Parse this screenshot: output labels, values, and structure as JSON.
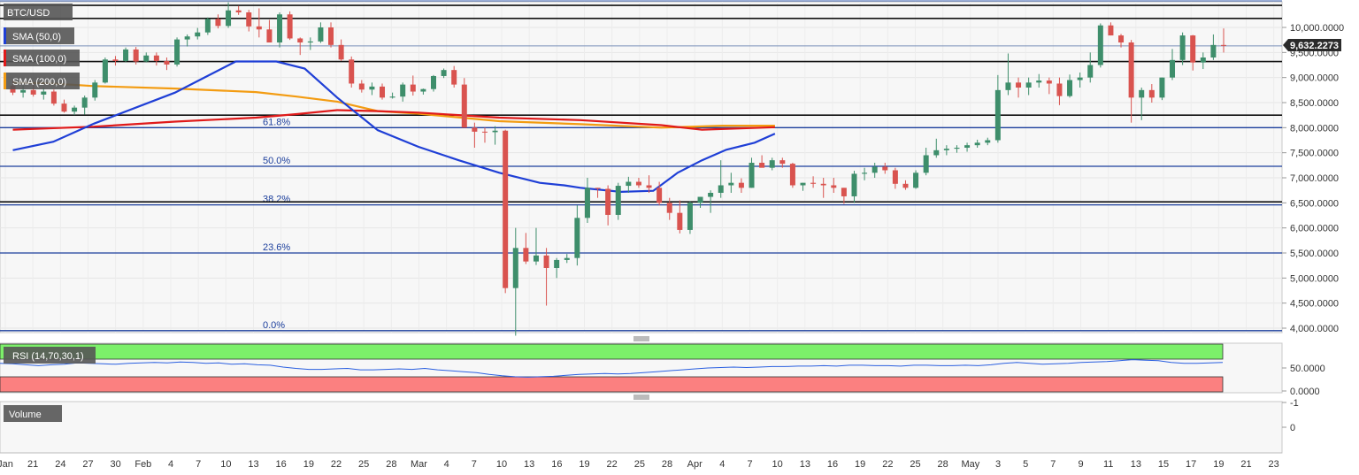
{
  "chart_data": {
    "type": "candlestick",
    "symbol": "BTC/USD",
    "indicator_labels": [
      "SMA (50,0)",
      "SMA (100,0)",
      "SMA (200,0)"
    ],
    "price_axis": {
      "min": 3900,
      "max": 10400,
      "ticks": [
        {
          "v": 10000,
          "label": "10,000.0000"
        },
        {
          "v": 9500,
          "label": "9,500.0000"
        },
        {
          "v": 9000,
          "label": "9,000.0000"
        },
        {
          "v": 8500,
          "label": "8,500.0000"
        },
        {
          "v": 8000,
          "label": "8,000.0000"
        },
        {
          "v": 7500,
          "label": "7,500.0000"
        },
        {
          "v": 7000,
          "label": "7,000.0000"
        },
        {
          "v": 6500,
          "label": "6,500.0000"
        },
        {
          "v": 6000,
          "label": "6,000.0000"
        },
        {
          "v": 5500,
          "label": "5,500.0000"
        },
        {
          "v": 5000,
          "label": "5,000.0000"
        },
        {
          "v": 4500,
          "label": "4,500.0000"
        },
        {
          "v": 4000,
          "label": "4,000.0000"
        }
      ]
    },
    "last_price": {
      "value": 9632.2273,
      "label": "9,632.2273"
    },
    "x_ticks": [
      "Jan",
      "21",
      "24",
      "27",
      "30",
      "Feb",
      "4",
      "7",
      "10",
      "13",
      "16",
      "19",
      "22",
      "25",
      "28",
      "Mar",
      "4",
      "7",
      "10",
      "13",
      "16",
      "19",
      "22",
      "25",
      "28",
      "Apr",
      "4",
      "7",
      "10",
      "13",
      "16",
      "19",
      "22",
      "25",
      "28",
      "May",
      "3",
      "5",
      "7",
      "9",
      "11",
      "13",
      "15",
      "17",
      "19",
      "21",
      "23"
    ],
    "fib_levels": [
      {
        "label": "61.8%",
        "value": 8000
      },
      {
        "label": "50.0%",
        "value": 7230
      },
      {
        "label": "38.2%",
        "value": 6460
      },
      {
        "label": "23.6%",
        "value": 5500
      },
      {
        "label": "0.0%",
        "value": 3950
      }
    ],
    "horizontal_lines": [
      10440,
      10180,
      9320,
      8250,
      6520
    ],
    "candles": [
      [
        8840,
        8950,
        8650,
        8700
      ],
      [
        8700,
        8840,
        8600,
        8750
      ],
      [
        8750,
        8880,
        8620,
        8660
      ],
      [
        8660,
        8800,
        8560,
        8720
      ],
      [
        8720,
        8760,
        8440,
        8480
      ],
      [
        8480,
        8560,
        8300,
        8320
      ],
      [
        8320,
        8440,
        8250,
        8400
      ],
      [
        8400,
        8640,
        8260,
        8600
      ],
      [
        8600,
        8950,
        8540,
        8900
      ],
      [
        8900,
        9400,
        8880,
        9360
      ],
      [
        9360,
        9430,
        9240,
        9330
      ],
      [
        9330,
        9600,
        9300,
        9560
      ],
      [
        9560,
        9610,
        9260,
        9320
      ],
      [
        9320,
        9500,
        9300,
        9440
      ],
      [
        9440,
        9500,
        9240,
        9330
      ],
      [
        9330,
        9400,
        9150,
        9260
      ],
      [
        9260,
        9800,
        9220,
        9760
      ],
      [
        9760,
        9860,
        9620,
        9820
      ],
      [
        9820,
        9990,
        9760,
        9900
      ],
      [
        9900,
        10200,
        9850,
        10170
      ],
      [
        10170,
        10260,
        9980,
        10030
      ],
      [
        10030,
        10500,
        9990,
        10340
      ],
      [
        10340,
        10430,
        10250,
        10300
      ],
      [
        10300,
        10350,
        9920,
        10020
      ],
      [
        10020,
        10380,
        9800,
        9960
      ],
      [
        9960,
        10150,
        9700,
        9700
      ],
      [
        9700,
        10300,
        9600,
        10260
      ],
      [
        10260,
        10320,
        9750,
        9780
      ],
      [
        9780,
        9800,
        9450,
        9700
      ],
      [
        9700,
        9800,
        9550,
        9720
      ],
      [
        9720,
        10100,
        9690,
        10000
      ],
      [
        10000,
        10100,
        9600,
        9650
      ],
      [
        9650,
        9760,
        9330,
        9360
      ],
      [
        9360,
        9420,
        8800,
        8880
      ],
      [
        8880,
        8950,
        8700,
        8760
      ],
      [
        8760,
        8900,
        8650,
        8820
      ],
      [
        8820,
        8880,
        8560,
        8600
      ],
      [
        8600,
        8700,
        8580,
        8620
      ],
      [
        8620,
        8900,
        8520,
        8860
      ],
      [
        8860,
        9040,
        8640,
        8720
      ],
      [
        8720,
        8780,
        8660,
        8770
      ],
      [
        8770,
        9050,
        8720,
        9030
      ],
      [
        9030,
        9180,
        8990,
        9150
      ],
      [
        9150,
        9230,
        8800,
        8860
      ],
      [
        8860,
        8990,
        8030,
        8000
      ],
      [
        8000,
        8100,
        7600,
        7920
      ],
      [
        7920,
        8000,
        7700,
        7910
      ],
      [
        7910,
        8030,
        7660,
        7940
      ],
      [
        7940,
        7960,
        4700,
        4800
      ],
      [
        4800,
        6000,
        3850,
        5600
      ],
      [
        5600,
        5900,
        5280,
        5330
      ],
      [
        5330,
        6000,
        5260,
        5450
      ],
      [
        5450,
        5600,
        4450,
        5200
      ],
      [
        5200,
        5400,
        5000,
        5360
      ],
      [
        5360,
        5480,
        5300,
        5400
      ],
      [
        5400,
        6450,
        5250,
        6200
      ],
      [
        6200,
        7000,
        6100,
        6800
      ],
      [
        6800,
        6800,
        6600,
        6780
      ],
      [
        6780,
        6850,
        6050,
        6260
      ],
      [
        6260,
        6900,
        6160,
        6840
      ],
      [
        6840,
        7020,
        6700,
        6920
      ],
      [
        6920,
        7000,
        6800,
        6850
      ],
      [
        6850,
        7050,
        6700,
        6800
      ],
      [
        6800,
        6920,
        6450,
        6500
      ],
      [
        6500,
        6600,
        6160,
        6300
      ],
      [
        6300,
        6550,
        5890,
        5960
      ],
      [
        5960,
        6540,
        5880,
        6500
      ],
      [
        6500,
        6620,
        6400,
        6620
      ],
      [
        6620,
        6750,
        6300,
        6700
      ],
      [
        6700,
        7350,
        6600,
        6850
      ],
      [
        6850,
        7100,
        6700,
        6900
      ],
      [
        6900,
        6990,
        6700,
        6800
      ],
      [
        6800,
        7400,
        6800,
        7300
      ],
      [
        7300,
        7450,
        7220,
        7200
      ],
      [
        7200,
        7400,
        7150,
        7350
      ],
      [
        7350,
        7400,
        7200,
        7280
      ],
      [
        7280,
        7300,
        6800,
        6850
      ],
      [
        6850,
        6900,
        6740,
        6900
      ],
      [
        6900,
        7030,
        6800,
        6880
      ],
      [
        6880,
        7000,
        6600,
        6850
      ],
      [
        6850,
        7000,
        6700,
        6800
      ],
      [
        6800,
        6800,
        6480,
        6630
      ],
      [
        6630,
        7140,
        6500,
        7080
      ],
      [
        7080,
        7200,
        6950,
        7100
      ],
      [
        7100,
        7300,
        7000,
        7220
      ],
      [
        7220,
        7300,
        7080,
        7150
      ],
      [
        7150,
        7200,
        6780,
        6880
      ],
      [
        6880,
        6950,
        6760,
        6800
      ],
      [
        6800,
        7150,
        6780,
        7100
      ],
      [
        7100,
        7600,
        7050,
        7450
      ],
      [
        7450,
        7780,
        7400,
        7550
      ],
      [
        7550,
        7650,
        7450,
        7580
      ],
      [
        7580,
        7650,
        7500,
        7600
      ],
      [
        7600,
        7700,
        7520,
        7650
      ],
      [
        7650,
        7760,
        7600,
        7700
      ],
      [
        7700,
        7800,
        7650,
        7750
      ],
      [
        7750,
        9050,
        7700,
        8750
      ],
      [
        8750,
        9480,
        8650,
        8900
      ],
      [
        8900,
        9000,
        8600,
        8800
      ],
      [
        8800,
        9000,
        8650,
        8900
      ],
      [
        8900,
        9070,
        8800,
        8940
      ],
      [
        8940,
        9000,
        8670,
        8880
      ],
      [
        8880,
        9000,
        8450,
        8630
      ],
      [
        8630,
        9060,
        8600,
        8950
      ],
      [
        8950,
        9100,
        8800,
        9000
      ],
      [
        9000,
        9500,
        8900,
        9250
      ],
      [
        9250,
        10080,
        9200,
        10040
      ],
      [
        10040,
        10100,
        9840,
        9840
      ],
      [
        9840,
        9870,
        9600,
        9700
      ],
      [
        9700,
        9750,
        8100,
        8600
      ],
      [
        8600,
        8800,
        8150,
        8750
      ],
      [
        8750,
        8870,
        8500,
        8600
      ],
      [
        8600,
        9000,
        8550,
        9000
      ],
      [
        9000,
        9570,
        8950,
        9350
      ],
      [
        9350,
        9900,
        9250,
        9840
      ],
      [
        9840,
        9850,
        9140,
        9300
      ],
      [
        9300,
        9500,
        9170,
        9400
      ],
      [
        9400,
        9860,
        9350,
        9650
      ],
      [
        9650,
        9980,
        9500,
        9632
      ]
    ],
    "sma_blue": [
      [
        0,
        7550
      ],
      [
        10,
        7720
      ],
      [
        20,
        8080
      ],
      [
        40,
        8700
      ],
      [
        55,
        9320
      ],
      [
        65,
        9320
      ],
      [
        72,
        9180
      ],
      [
        80,
        8600
      ],
      [
        90,
        7950
      ],
      [
        100,
        7620
      ],
      [
        110,
        7350
      ],
      [
        120,
        7100
      ],
      [
        130,
        6900
      ],
      [
        136,
        6850
      ],
      [
        140,
        6800
      ],
      [
        150,
        6720
      ],
      [
        158,
        6740
      ],
      [
        164,
        7100
      ],
      [
        170,
        7350
      ],
      [
        176,
        7560
      ],
      [
        183,
        7700
      ],
      [
        188,
        7880
      ]
    ],
    "sma_red": [
      [
        0,
        7960
      ],
      [
        20,
        8020
      ],
      [
        40,
        8120
      ],
      [
        60,
        8200
      ],
      [
        70,
        8270
      ],
      [
        80,
        8350
      ],
      [
        90,
        8330
      ],
      [
        100,
        8300
      ],
      [
        120,
        8200
      ],
      [
        140,
        8150
      ],
      [
        160,
        8050
      ],
      [
        170,
        7960
      ],
      [
        188,
        8010
      ]
    ],
    "sma_orange": [
      [
        0,
        8900
      ],
      [
        10,
        8880
      ],
      [
        20,
        8830
      ],
      [
        40,
        8780
      ],
      [
        60,
        8710
      ],
      [
        70,
        8620
      ],
      [
        80,
        8520
      ],
      [
        90,
        8330
      ],
      [
        100,
        8280
      ],
      [
        120,
        8130
      ],
      [
        140,
        8070
      ],
      [
        160,
        8000
      ],
      [
        175,
        8040
      ],
      [
        188,
        8040
      ]
    ],
    "rsi": {
      "label": "RSI (14,70,30,1)",
      "ticks": [
        {
          "v": 50,
          "label": "50.0000"
        },
        {
          "v": 0,
          "label": "0.0000"
        }
      ],
      "values": [
        60,
        59,
        57,
        55,
        57,
        58,
        61,
        60,
        59,
        58,
        60,
        61,
        62,
        61,
        63,
        62,
        60,
        61,
        58,
        59,
        57,
        56,
        52,
        49,
        47,
        47,
        48,
        49,
        46,
        46,
        47,
        48,
        47,
        49,
        46,
        44,
        42,
        40,
        36,
        33,
        31,
        30,
        31,
        32,
        34,
        36,
        37,
        38,
        37,
        38,
        40,
        42,
        44,
        46,
        48,
        50,
        51,
        52,
        51,
        52,
        53,
        53,
        54,
        54,
        55,
        54,
        56,
        56,
        55,
        55,
        54,
        56,
        56,
        55,
        55,
        56,
        55,
        57,
        60,
        62,
        60,
        58,
        59,
        60,
        62,
        63,
        64,
        66,
        68,
        67,
        66,
        62,
        60,
        60,
        61,
        62
      ]
    },
    "volume": {
      "label": "Volume",
      "ticks": [
        {
          "v": 0,
          "label": "0"
        },
        {
          "v": -1,
          "label": "-1"
        }
      ]
    }
  }
}
